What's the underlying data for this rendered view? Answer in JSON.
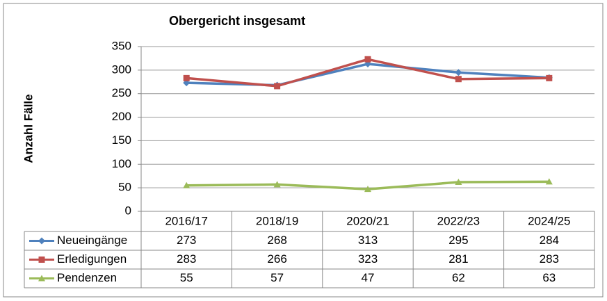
{
  "chart_data": {
    "type": "line",
    "title": "Obergericht insgesamt",
    "y_label": "Anzahl Fälle",
    "categories": [
      "2016/17",
      "2018/19",
      "2020/21",
      "2022/23",
      "2024/25"
    ],
    "series": [
      {
        "name": "Neueingänge",
        "color": "#4f81bd",
        "marker": "diamond",
        "values": [
          273,
          268,
          313,
          295,
          284
        ]
      },
      {
        "name": "Erledigungen",
        "color": "#c0504d",
        "marker": "square",
        "values": [
          283,
          266,
          323,
          281,
          283
        ]
      },
      {
        "name": "Pendenzen",
        "color": "#9bbb59",
        "marker": "triangle",
        "values": [
          55,
          57,
          47,
          62,
          63
        ]
      }
    ],
    "ylim": [
      0,
      350
    ],
    "yticks": [
      0,
      50,
      100,
      150,
      200,
      250,
      300,
      350
    ],
    "grid": true,
    "data_table": true
  }
}
